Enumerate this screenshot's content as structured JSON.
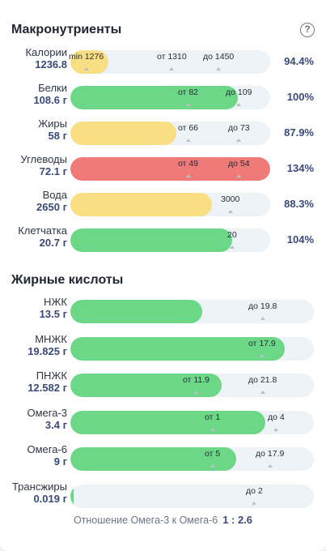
{
  "macro_title": "Макронутриенты",
  "help_glyph": "?",
  "macros": [
    {
      "name": "Калории",
      "value": "1236.8",
      "pct": "94.4%",
      "fill": 0.19,
      "color": "yellow",
      "markers": [
        {
          "text": "min 1276",
          "pos": 0.09
        },
        {
          "text": "от 1310",
          "pos": 0.52
        },
        {
          "text": "до 1450",
          "pos": 0.75
        }
      ]
    },
    {
      "name": "Белки",
      "value": "108.6 г",
      "pct": "100%",
      "fill": 0.84,
      "color": "green",
      "markers": [
        {
          "text": "от 82",
          "pos": 0.6
        },
        {
          "text": "до 109",
          "pos": 0.85
        }
      ]
    },
    {
      "name": "Жиры",
      "value": "58 г",
      "pct": "87.9%",
      "fill": 0.53,
      "color": "yellow",
      "markers": [
        {
          "text": "от 66",
          "pos": 0.6
        },
        {
          "text": "до 73",
          "pos": 0.85
        }
      ]
    },
    {
      "name": "Углеводы",
      "value": "72.1 г",
      "pct": "134%",
      "fill": 1.0,
      "color": "red",
      "markers": [
        {
          "text": "от 49",
          "pos": 0.6
        },
        {
          "text": "до 54",
          "pos": 0.85
        }
      ]
    },
    {
      "name": "Вода",
      "value": "2650 г",
      "pct": "88.3%",
      "fill": 0.71,
      "color": "yellow",
      "markers": [
        {
          "text": "3000",
          "pos": 0.8
        }
      ]
    },
    {
      "name": "Клетчатка",
      "value": "20.7 г",
      "pct": "104%",
      "fill": 0.81,
      "color": "green",
      "markers": [
        {
          "text": "20",
          "pos": 0.81
        }
      ]
    }
  ],
  "fat_title": "Жирные кислоты",
  "fats": [
    {
      "name": "НЖК",
      "value": "13.5 г",
      "fill": 0.54,
      "color": "green",
      "markers": [
        {
          "text": "до 19.8",
          "pos": 0.8
        }
      ]
    },
    {
      "name": "МНЖК",
      "value": "19.825 г",
      "fill": 0.88,
      "color": "green",
      "markers": [
        {
          "text": "от 17.9",
          "pos": 0.8
        }
      ]
    },
    {
      "name": "ПНЖК",
      "value": "12.582 г",
      "fill": 0.62,
      "color": "green",
      "markers": [
        {
          "text": "от 11.9",
          "pos": 0.53
        },
        {
          "text": "до 21.8",
          "pos": 0.8
        }
      ]
    },
    {
      "name": "Омега-3",
      "value": "3.4 г",
      "fill": 0.8,
      "color": "green",
      "markers": [
        {
          "text": "от 1",
          "pos": 0.59
        },
        {
          "text": "до 4",
          "pos": 0.85
        }
      ]
    },
    {
      "name": "Омега-6",
      "value": "9 г",
      "fill": 0.68,
      "color": "green",
      "markers": [
        {
          "text": "от 5",
          "pos": 0.59
        },
        {
          "text": "до 17.9",
          "pos": 0.83
        }
      ]
    },
    {
      "name": "Трансжиры",
      "value": "0.019 г",
      "fill": 0.012,
      "color": "green",
      "markers": [
        {
          "text": "до 2",
          "pos": 0.76
        }
      ]
    }
  ],
  "ratio_label": "Отношение Омега-3 к Омега-6",
  "ratio_value": "1 : 2.6"
}
